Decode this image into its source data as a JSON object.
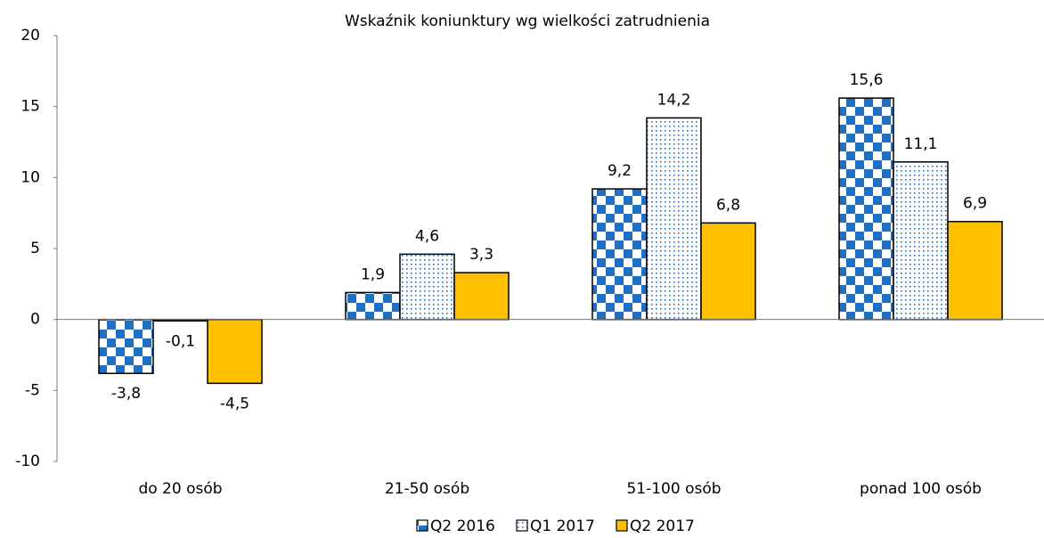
{
  "chart_data": {
    "type": "bar",
    "title": "Wskaźnik koniunktury wg wielkości zatrudnienia",
    "categories": [
      "do 20 osób",
      "21-50 osób",
      "51-100 osób",
      "ponad 100 osób"
    ],
    "series": [
      {
        "name": "Q2 2016",
        "color": "#1f6fc5",
        "pattern": "checker",
        "values": [
          -3.8,
          1.9,
          9.2,
          15.6
        ],
        "value_labels": [
          "-3,8",
          "1,9",
          "9,2",
          "15,6"
        ]
      },
      {
        "name": "Q1 2017",
        "color": "#1f6fc5",
        "pattern": "dots",
        "values": [
          -0.1,
          4.6,
          14.2,
          11.1
        ],
        "value_labels": [
          "-0,1",
          "4,6",
          "14,2",
          "11,1"
        ]
      },
      {
        "name": "Q2 2017",
        "color": "#ffc000",
        "pattern": "solid",
        "values": [
          -4.5,
          3.3,
          6.8,
          6.9
        ],
        "value_labels": [
          "-4,5",
          "3,3",
          "6,8",
          "6,9"
        ]
      }
    ],
    "ylim": [
      -10,
      20
    ],
    "yticks": [
      -10,
      -5,
      0,
      5,
      10,
      15,
      20
    ],
    "grid": false,
    "legend": "bottom"
  }
}
